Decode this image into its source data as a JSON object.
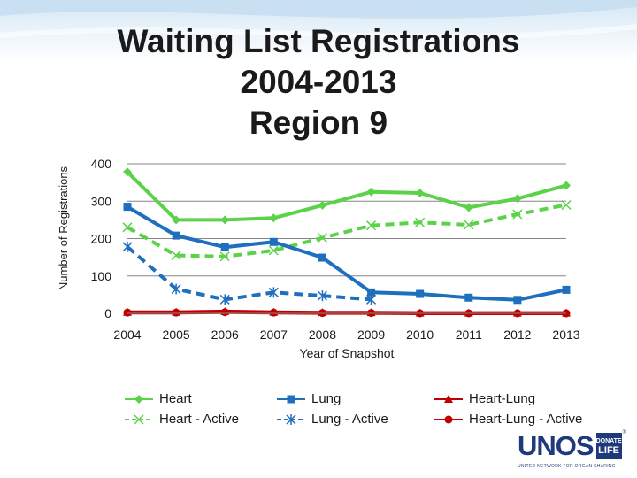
{
  "title_lines": [
    "Waiting List Registrations",
    "2004-2013",
    "Region 9"
  ],
  "chart_data": {
    "type": "line",
    "title": "Waiting List Registrations 2004-2013 Region 9",
    "xlabel": "Year of Snapshot",
    "ylabel": "Number of Registrations",
    "ylim": [
      0,
      400
    ],
    "yticks": [
      0,
      100,
      200,
      300,
      400
    ],
    "grid": true,
    "legend_position": "bottom",
    "categories": [
      "2004",
      "2005",
      "2006",
      "2007",
      "2008",
      "2009",
      "2010",
      "2011",
      "2012",
      "2013"
    ],
    "series": [
      {
        "name": "Heart",
        "color": "#5cd24a",
        "style": "solid",
        "marker": "diamond",
        "values": [
          378,
          250,
          250,
          255,
          289,
          325,
          322,
          283,
          307,
          342
        ]
      },
      {
        "name": "Heart - Active",
        "color": "#5cd24a",
        "style": "dashed",
        "marker": "x",
        "values": [
          230,
          155,
          152,
          168,
          202,
          235,
          243,
          237,
          265,
          290
        ]
      },
      {
        "name": "Lung",
        "color": "#1f6fbf",
        "style": "solid",
        "marker": "square",
        "values": [
          285,
          208,
          177,
          191,
          149,
          56,
          52,
          42,
          36,
          63
        ]
      },
      {
        "name": "Lung - Active",
        "color": "#1f6fbf",
        "style": "dashed",
        "marker": "star",
        "values": [
          178,
          65,
          37,
          56,
          47,
          37,
          null,
          null,
          null,
          null
        ]
      },
      {
        "name": "Heart-Lung",
        "color": "#c00000",
        "style": "solid",
        "marker": "triangle",
        "values": [
          3,
          3,
          5,
          3,
          2,
          2,
          1,
          1,
          1,
          1
        ]
      },
      {
        "name": "Heart-Lung - Active",
        "color": "#c00000",
        "style": "solid",
        "marker": "circle",
        "values": [
          2,
          2,
          3,
          2,
          1,
          1,
          0,
          0,
          0,
          0
        ]
      }
    ]
  },
  "logo": {
    "name": "UNOS",
    "badge_top": "DONATE",
    "badge_bottom": "LIFE",
    "tagline": "UNITED NETWORK FOR ORGAN SHARING",
    "registered": "®"
  }
}
